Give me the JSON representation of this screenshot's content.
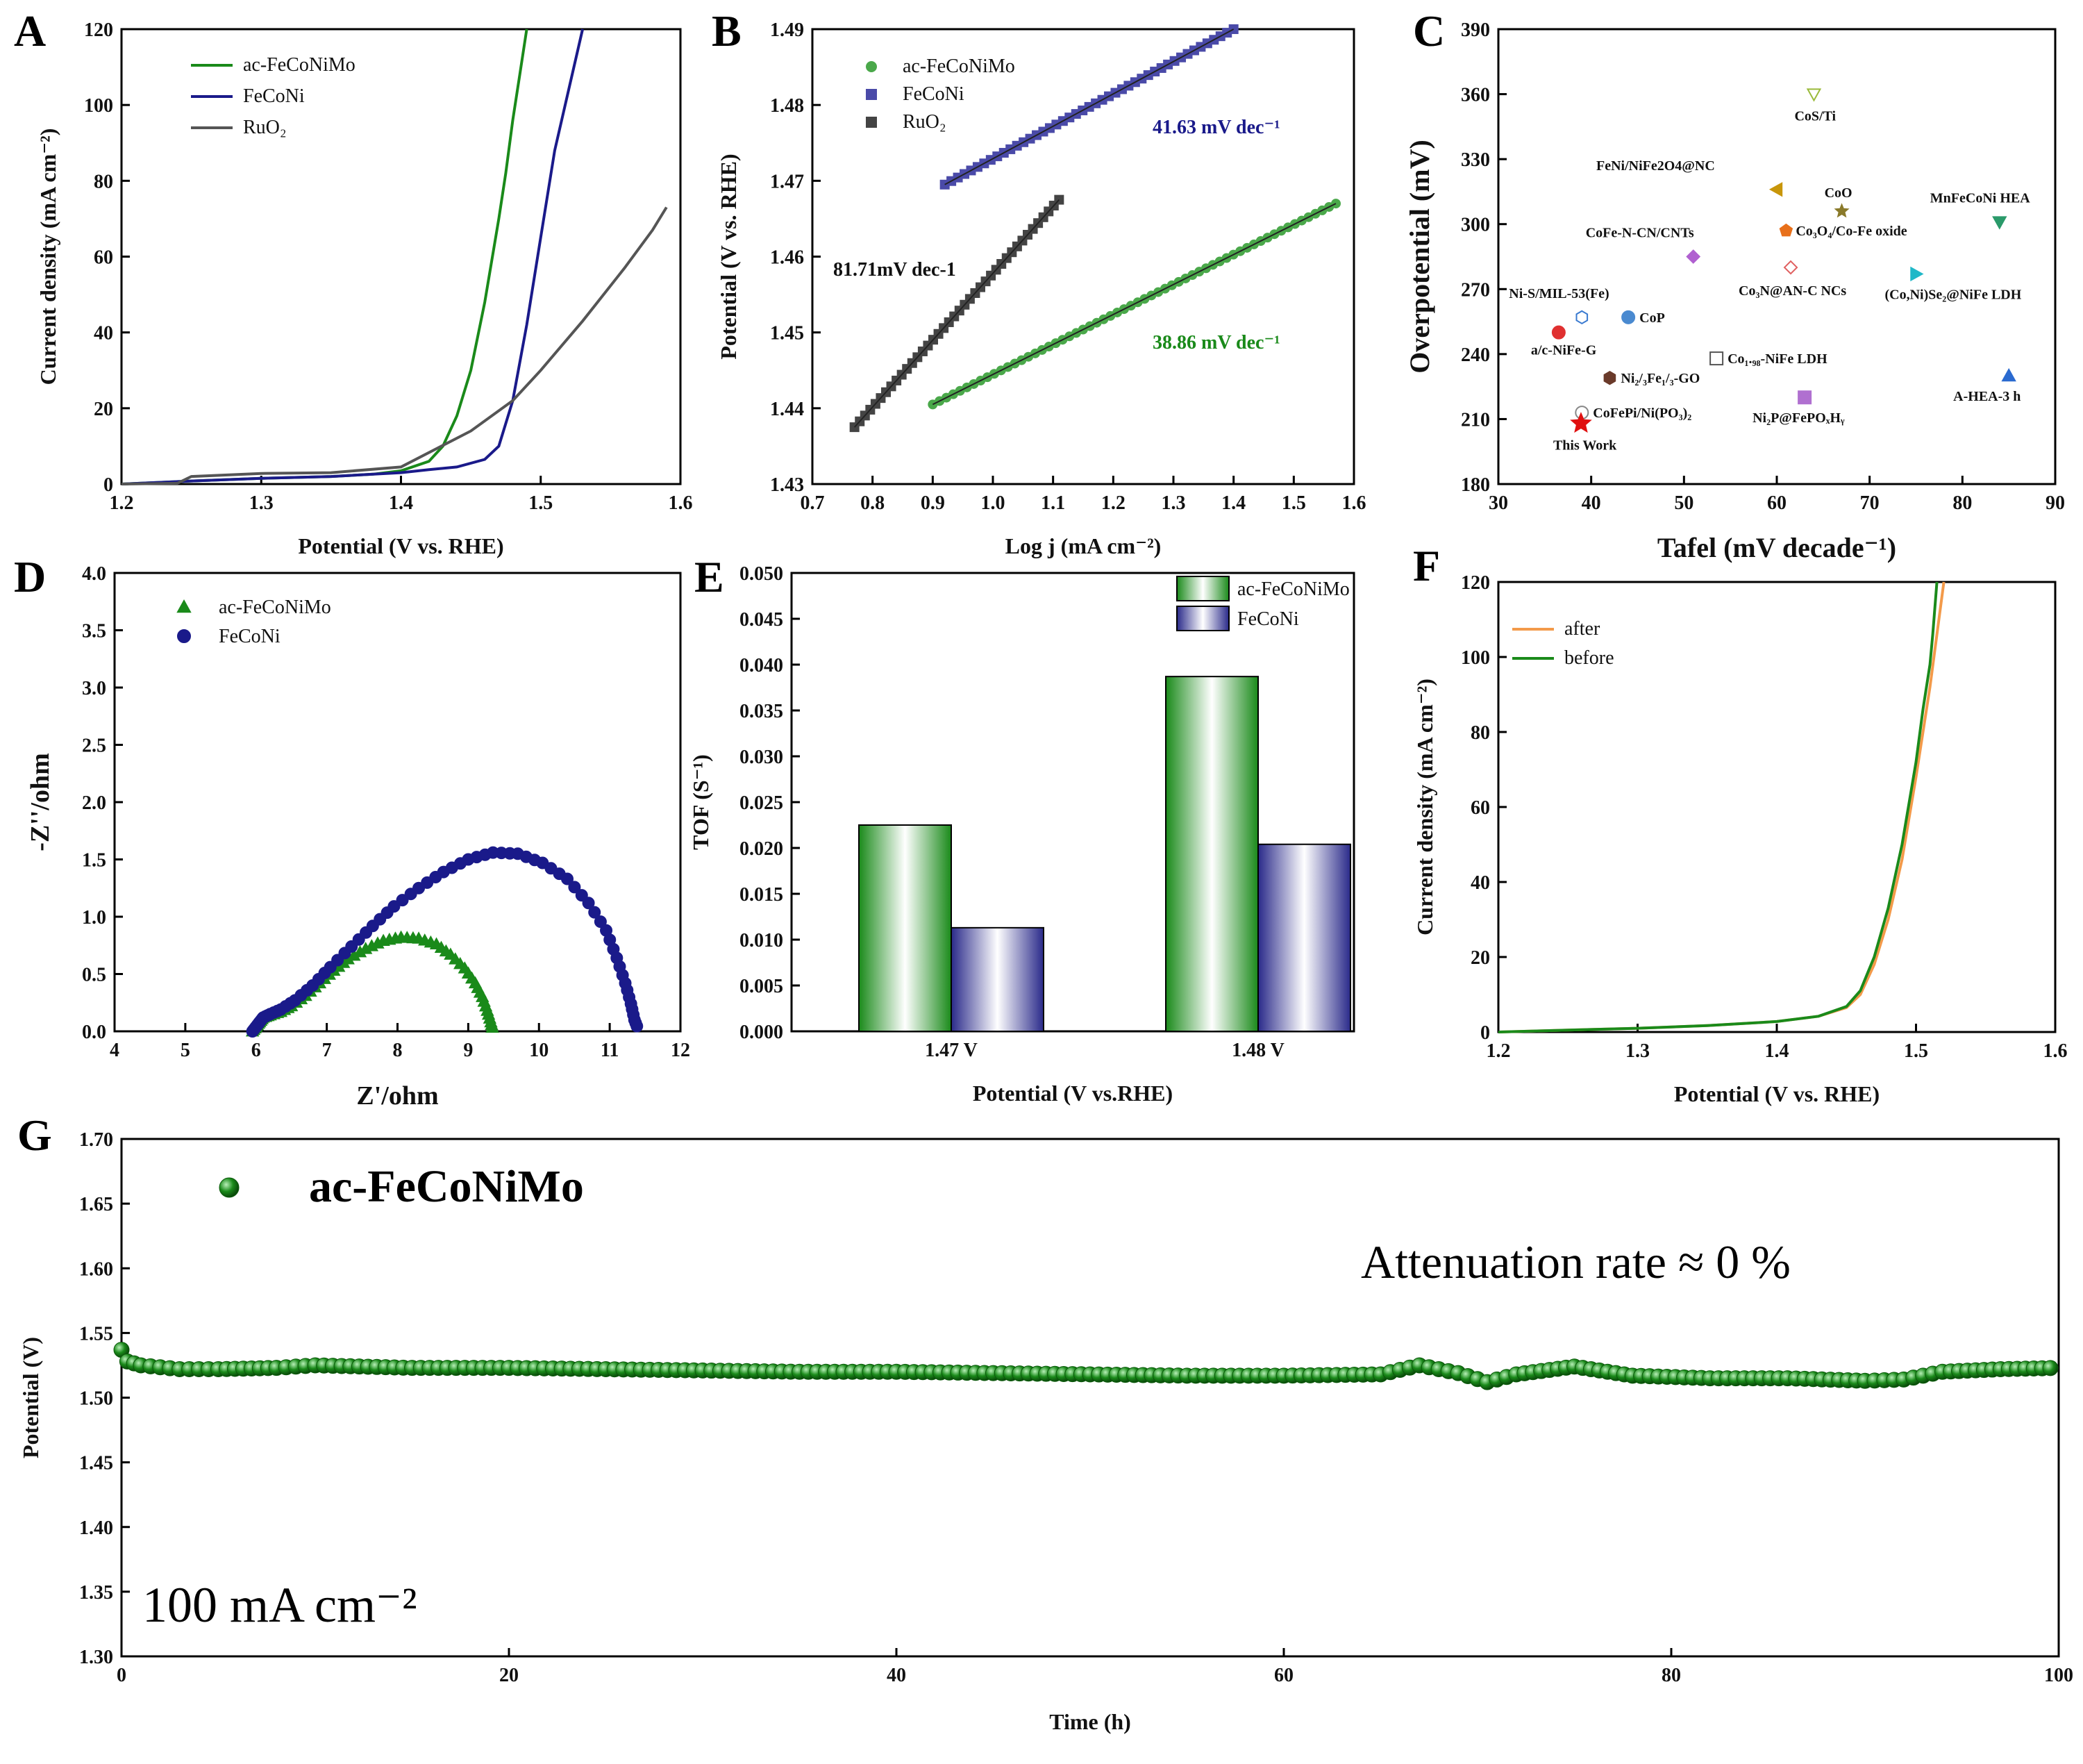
{
  "chart_data": [
    {
      "panel": "A",
      "type": "line",
      "xlabel": "Potential (V vs. RHE)",
      "ylabel": "Current density (mA cm⁻²)",
      "xlim": [
        1.2,
        1.6
      ],
      "ylim": [
        0,
        120
      ],
      "xticks": [
        "1.2",
        "1.3",
        "1.4",
        "1.5",
        "1.6"
      ],
      "yticks": [
        "0",
        "20",
        "40",
        "60",
        "80",
        "100",
        "120"
      ],
      "legend_position": "top-left",
      "series": [
        {
          "name": "ac-FeCoNiMo",
          "color": "#1a8a1a",
          "x": [
            1.2,
            1.25,
            1.3,
            1.35,
            1.38,
            1.4,
            1.42,
            1.43,
            1.44,
            1.45,
            1.46,
            1.47,
            1.475,
            1.48,
            1.485,
            1.49
          ],
          "y": [
            0,
            0.8,
            1.5,
            2.0,
            2.6,
            3.5,
            6,
            10,
            18,
            30,
            48,
            70,
            82,
            96,
            108,
            120
          ]
        },
        {
          "name": "FeCoNi",
          "color": "#1a1a8a",
          "x": [
            1.2,
            1.25,
            1.3,
            1.35,
            1.4,
            1.42,
            1.44,
            1.46,
            1.47,
            1.48,
            1.49,
            1.5,
            1.51,
            1.52,
            1.53
          ],
          "y": [
            0,
            0.8,
            1.5,
            2.0,
            3.0,
            3.8,
            4.5,
            6.5,
            10,
            22,
            42,
            65,
            88,
            104,
            120
          ]
        },
        {
          "name": "RuO₂",
          "color": "#555555",
          "x": [
            1.2,
            1.24,
            1.25,
            1.3,
            1.35,
            1.4,
            1.45,
            1.48,
            1.5,
            1.53,
            1.56,
            1.58,
            1.59
          ],
          "y": [
            0,
            0.2,
            2.0,
            2.8,
            3.0,
            4.5,
            14,
            22,
            30,
            43,
            57,
            67,
            73
          ]
        }
      ]
    },
    {
      "panel": "B",
      "type": "scatter",
      "xlabel": "Log j (mA cm⁻²)",
      "ylabel": "Potential (V vs. RHE)",
      "xlim": [
        0.7,
        1.6
      ],
      "ylim": [
        1.43,
        1.49
      ],
      "xticks": [
        "0.7",
        "0.8",
        "0.9",
        "1.0",
        "1.1",
        "1.2",
        "1.3",
        "1.4",
        "1.5",
        "1.6"
      ],
      "yticks": [
        "1.43",
        "1.44",
        "1.45",
        "1.46",
        "1.47",
        "1.48",
        "1.49"
      ],
      "legend_position": "top-left",
      "series": [
        {
          "name": "ac-FeCoNiMo",
          "color": "#4aa84a",
          "marker": "circle",
          "x0": 0.9,
          "y0": 1.4405,
          "x1": 1.57,
          "y1": 1.467,
          "points": 60
        },
        {
          "name": "FeCoNi",
          "color": "#4a4aa8",
          "marker": "square",
          "x0": 0.92,
          "y0": 1.4695,
          "x1": 1.4,
          "y1": 1.49,
          "points": 45
        },
        {
          "name": "RuO₂",
          "color": "#444444",
          "marker": "square",
          "x0": 0.77,
          "y0": 1.4375,
          "x1": 1.11,
          "y1": 1.4675,
          "points": 40
        }
      ],
      "annotations": [
        {
          "text": "41.63 mV dec⁻¹",
          "color": "#1a1a8a"
        },
        {
          "text": "81.71mV dec-1",
          "color": "#111111"
        },
        {
          "text": "38.86 mV dec⁻¹",
          "color": "#1a8a1a"
        }
      ]
    },
    {
      "panel": "C",
      "type": "scatter",
      "xlabel": "Tafel (mV decade⁻¹)",
      "ylabel": "Overpotential (mV)",
      "xlim": [
        30,
        90
      ],
      "ylim": [
        180,
        390
      ],
      "xticks": [
        "30",
        "40",
        "50",
        "60",
        "70",
        "80",
        "90"
      ],
      "yticks": [
        "180",
        "210",
        "240",
        "270",
        "300",
        "330",
        "360",
        "390"
      ],
      "points": [
        {
          "label": "CoS/Ti",
          "x": 64,
          "y": 360,
          "color": "#9aba3a",
          "marker": "tri-down-open"
        },
        {
          "label": "FeNi/NiFe2O4@NC",
          "x": 60,
          "y": 316,
          "color": "#c8960a",
          "marker": "tri-left"
        },
        {
          "label": "CoO",
          "x": 67,
          "y": 306,
          "color": "#8a7a2a",
          "marker": "star"
        },
        {
          "label": "MnFeCoNi HEA",
          "x": 84,
          "y": 301,
          "color": "#2a9a6a",
          "marker": "tri-down"
        },
        {
          "label": "Co₃O₄/Co-Fe oxide",
          "x": 61,
          "y": 297,
          "color": "#e8701a",
          "marker": "pentagon"
        },
        {
          "label": "CoFe-N-CN/CNTs",
          "x": 51,
          "y": 285,
          "color": "#b060d0",
          "marker": "diamond"
        },
        {
          "label": "Co₃N@AN-C NCs",
          "x": 61.5,
          "y": 280,
          "color": "#e06060",
          "marker": "diamond-open"
        },
        {
          "label": "(Co,Ni)Se₂@NiFe LDH",
          "x": 75,
          "y": 277,
          "color": "#20b8c8",
          "marker": "tri-right"
        },
        {
          "label": "Ni-S/MIL-53(Fe)",
          "x": 39,
          "y": 257,
          "color": "#3a7ad0",
          "marker": "hexagon-open"
        },
        {
          "label": "CoP",
          "x": 44,
          "y": 257,
          "color": "#4a8ad0",
          "marker": "circle"
        },
        {
          "label": "a/c-NiFe-G",
          "x": 36.5,
          "y": 250,
          "color": "#e03030",
          "marker": "circle"
        },
        {
          "label": "Co₁.₉₈-NiFe LDH",
          "x": 53.5,
          "y": 238,
          "color": "#555555",
          "marker": "square-open"
        },
        {
          "label": "Ni₂/₃Fe₁/₃-GO",
          "x": 42,
          "y": 229,
          "color": "#6a3a2a",
          "marker": "hexagon"
        },
        {
          "label": "A-HEA-3 h",
          "x": 85,
          "y": 230,
          "color": "#2a6ad0",
          "marker": "tri-up"
        },
        {
          "label": "Ni₂P@FePOₓHᵧ",
          "x": 63,
          "y": 220,
          "color": "#b070d0",
          "marker": "square"
        },
        {
          "label": "CoFePi/Ni(PO₃)₂",
          "x": 39,
          "y": 213,
          "color": "#888888",
          "marker": "circle-open"
        },
        {
          "label": "This Work",
          "x": 38.9,
          "y": 208,
          "color": "#e01010",
          "marker": "star"
        }
      ]
    },
    {
      "panel": "D",
      "type": "scatter",
      "xlabel": "Z'/ohm",
      "ylabel": "-Z''/ohm",
      "xlim": [
        4,
        12
      ],
      "ylim": [
        0,
        4.0
      ],
      "xticks": [
        "4",
        "5",
        "6",
        "7",
        "8",
        "9",
        "10",
        "11",
        "12"
      ],
      "yticks": [
        "0.0",
        "0.5",
        "1.0",
        "1.5",
        "2.0",
        "2.5",
        "3.0",
        "3.5",
        "4.0"
      ],
      "legend_position": "top-left",
      "series": [
        {
          "name": "ac-FeCoNiMo",
          "color": "#1a8a1a",
          "marker": "triangle",
          "x": [
            5.95,
            6.0,
            6.05,
            6.1,
            6.2,
            6.35,
            6.5,
            6.7,
            6.9,
            7.1,
            7.3,
            7.55,
            7.8,
            8.05,
            8.3,
            8.55,
            8.75,
            8.95,
            9.1,
            9.2,
            9.27,
            9.32,
            9.35
          ],
          "y": [
            0.0,
            0.04,
            0.08,
            0.12,
            0.14,
            0.17,
            0.22,
            0.31,
            0.42,
            0.53,
            0.63,
            0.72,
            0.79,
            0.82,
            0.81,
            0.76,
            0.67,
            0.55,
            0.42,
            0.3,
            0.18,
            0.08,
            0.01
          ]
        },
        {
          "name": "FeCoNi",
          "color": "#1a1a8a",
          "marker": "circle",
          "x": [
            5.95,
            6.0,
            6.05,
            6.1,
            6.2,
            6.35,
            6.55,
            6.8,
            7.05,
            7.35,
            7.65,
            7.95,
            8.3,
            8.65,
            9.0,
            9.35,
            9.7,
            10.05,
            10.4,
            10.7,
            10.95,
            11.1,
            11.22,
            11.3,
            11.35,
            11.4
          ],
          "y": [
            0.0,
            0.04,
            0.08,
            0.12,
            0.15,
            0.19,
            0.27,
            0.4,
            0.56,
            0.74,
            0.92,
            1.09,
            1.25,
            1.39,
            1.5,
            1.56,
            1.55,
            1.47,
            1.33,
            1.12,
            0.88,
            0.64,
            0.42,
            0.24,
            0.1,
            0.02
          ]
        }
      ]
    },
    {
      "panel": "E",
      "type": "bar",
      "xlabel": "Potential (V vs.RHE)",
      "ylabel": "TOF (S⁻¹)",
      "ylim": [
        0,
        0.05
      ],
      "yticks": [
        "0.000",
        "0.005",
        "0.010",
        "0.015",
        "0.020",
        "0.025",
        "0.030",
        "0.035",
        "0.040",
        "0.045",
        "0.050"
      ],
      "categories": [
        "1.47 V",
        "1.48 V"
      ],
      "legend_position": "top-right",
      "series": [
        {
          "name": "ac-FeCoNiMo",
          "color": "#1a8a1a",
          "values": [
            0.0225,
            0.0387
          ]
        },
        {
          "name": "FeCoNi",
          "color": "#2a2a8a",
          "values": [
            0.0113,
            0.0204
          ]
        }
      ]
    },
    {
      "panel": "F",
      "type": "line",
      "xlabel": "Potential (V vs. RHE)",
      "ylabel": "Current density (mA cm⁻²)",
      "xlim": [
        1.2,
        1.6
      ],
      "ylim": [
        0,
        120
      ],
      "xticks": [
        "1.2",
        "1.3",
        "1.4",
        "1.5",
        "1.6"
      ],
      "yticks": [
        "0",
        "20",
        "40",
        "60",
        "80",
        "100",
        "120"
      ],
      "legend_position": "top-left",
      "series": [
        {
          "name": "after",
          "color": "#f39a4a",
          "x": [
            1.2,
            1.25,
            1.3,
            1.35,
            1.4,
            1.43,
            1.45,
            1.46,
            1.47,
            1.48,
            1.49,
            1.5,
            1.51,
            1.515,
            1.52
          ],
          "y": [
            0,
            0.5,
            1.0,
            1.7,
            2.8,
            4.2,
            6.5,
            10,
            18,
            30,
            46,
            68,
            92,
            106,
            120
          ]
        },
        {
          "name": "before",
          "color": "#1a8a1a",
          "x": [
            1.2,
            1.25,
            1.3,
            1.35,
            1.4,
            1.43,
            1.45,
            1.46,
            1.47,
            1.48,
            1.49,
            1.5,
            1.505,
            1.51,
            1.512,
            1.515
          ],
          "y": [
            0,
            0.5,
            1.0,
            1.7,
            2.8,
            4.2,
            6.8,
            11,
            20,
            33,
            50,
            72,
            86,
            98,
            106,
            120
          ]
        }
      ]
    },
    {
      "panel": "G",
      "type": "scatter",
      "xlabel": "Time (h)",
      "ylabel": "Potential (V)",
      "xlim": [
        0,
        100
      ],
      "ylim": [
        1.3,
        1.7
      ],
      "xticks": [
        "0",
        "20",
        "40",
        "60",
        "80",
        "100"
      ],
      "yticks": [
        "1.30",
        "1.35",
        "1.40",
        "1.45",
        "1.50",
        "1.55",
        "1.60",
        "1.65",
        "1.70"
      ],
      "legend_position": "top-left",
      "series": [
        {
          "name": "ac-FeCoNiMo",
          "color": "#1a8a1a",
          "marker": "circle",
          "x": [
            0,
            0.3,
            1,
            3,
            5,
            8,
            10,
            15,
            20,
            25,
            30,
            35,
            40,
            45,
            50,
            55,
            60,
            65,
            67,
            69,
            70.5,
            72,
            75,
            78,
            82,
            86,
            90,
            92,
            94,
            97,
            100
          ],
          "y": [
            1.537,
            1.528,
            1.525,
            1.522,
            1.522,
            1.523,
            1.525,
            1.523,
            1.523,
            1.522,
            1.521,
            1.52,
            1.52,
            1.519,
            1.518,
            1.517,
            1.517,
            1.518,
            1.525,
            1.519,
            1.512,
            1.518,
            1.524,
            1.517,
            1.515,
            1.515,
            1.513,
            1.514,
            1.52,
            1.522,
            1.523
          ]
        }
      ]
    }
  ],
  "labels": {
    "panel_A": "A",
    "panel_B": "B",
    "panel_C": "C",
    "panel_D": "D",
    "panel_E": "E",
    "panel_F": "F",
    "panel_G": "G",
    "g_legend": "ac-FeCoNiMo",
    "g_attenuation": "Attenuation rate ≈ 0 %",
    "g_current": "100 mA cm⁻²"
  }
}
